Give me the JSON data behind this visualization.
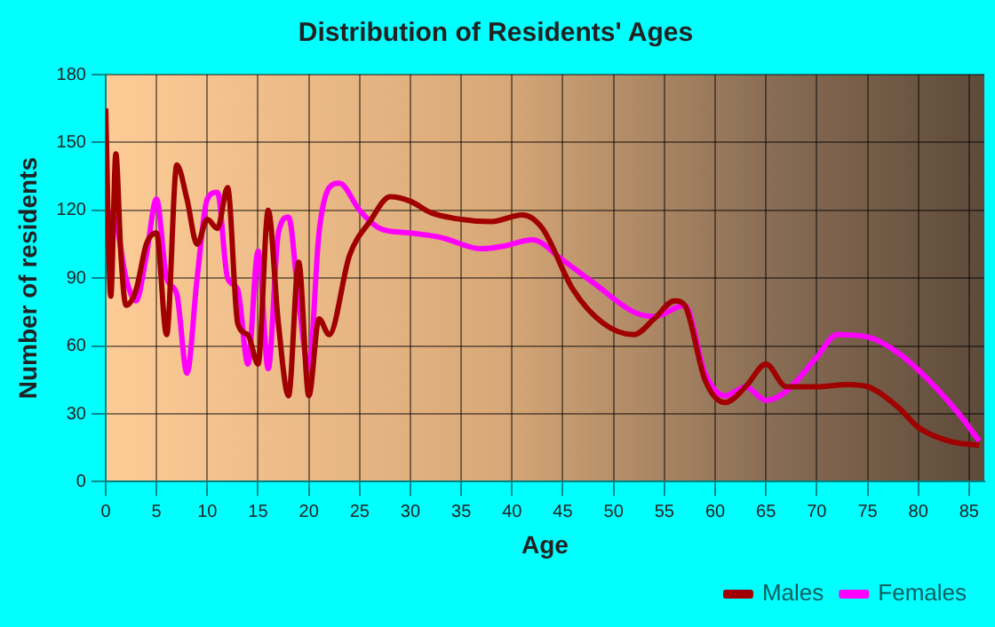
{
  "chart_data": {
    "type": "line",
    "title": "Distribution of Residents' Ages",
    "xlabel": "Age",
    "ylabel": "Number of residents",
    "xlim": [
      0,
      86.5
    ],
    "xticks": [
      0,
      5,
      10,
      15,
      20,
      25,
      30,
      35,
      40,
      45,
      50,
      55,
      60,
      65,
      70,
      75,
      80,
      85
    ],
    "ylim": [
      0,
      180
    ],
    "yticks": [
      0,
      30,
      60,
      90,
      120,
      150,
      180
    ],
    "grid": true,
    "legend": "bottom right",
    "marker": "none",
    "series": [
      {
        "name": "Males",
        "color": "#a00000",
        "x": [
          0,
          0.5,
          1,
          1.5,
          2,
          3,
          4,
          5,
          6,
          7,
          8,
          9,
          10,
          11,
          12,
          13,
          14,
          15,
          16,
          17,
          18,
          19,
          20,
          21,
          22,
          24,
          26,
          28,
          30,
          32,
          35,
          38,
          41,
          43,
          46,
          49,
          52,
          54,
          56,
          57,
          59,
          61,
          63,
          65,
          67,
          70,
          73,
          75,
          78,
          80,
          83,
          86
        ],
        "values": [
          165,
          82,
          145,
          100,
          78,
          85,
          105,
          110,
          65,
          140,
          125,
          105,
          116,
          112,
          130,
          70,
          65,
          52,
          120,
          70,
          38,
          97,
          38,
          72,
          65,
          100,
          115,
          126,
          124,
          119,
          116,
          115,
          118,
          112,
          85,
          70,
          65,
          72,
          80,
          78,
          45,
          35,
          42,
          52,
          42,
          42,
          43,
          42,
          33,
          24,
          18,
          16
        ]
      },
      {
        "name": "Females",
        "color": "#ff00ff",
        "x": [
          0,
          1,
          2,
          3,
          4,
          5,
          6,
          7,
          8,
          9,
          10,
          11,
          12,
          13,
          14,
          15,
          16,
          17,
          18,
          19,
          20,
          21,
          22,
          23,
          25,
          27,
          30,
          33,
          37,
          39,
          42,
          45,
          48,
          52,
          54,
          57,
          59,
          61,
          63,
          65,
          67,
          70,
          72,
          75,
          78,
          81,
          84,
          86
        ],
        "values": [
          120,
          115,
          90,
          80,
          100,
          125,
          90,
          83,
          48,
          90,
          125,
          128,
          90,
          85,
          52,
          102,
          50,
          110,
          117,
          80,
          50,
          110,
          130,
          132,
          120,
          112,
          110,
          108,
          103,
          104,
          107,
          98,
          88,
          75,
          73,
          78,
          48,
          38,
          42,
          36,
          40,
          55,
          65,
          64,
          57,
          45,
          30,
          18
        ]
      }
    ]
  }
}
